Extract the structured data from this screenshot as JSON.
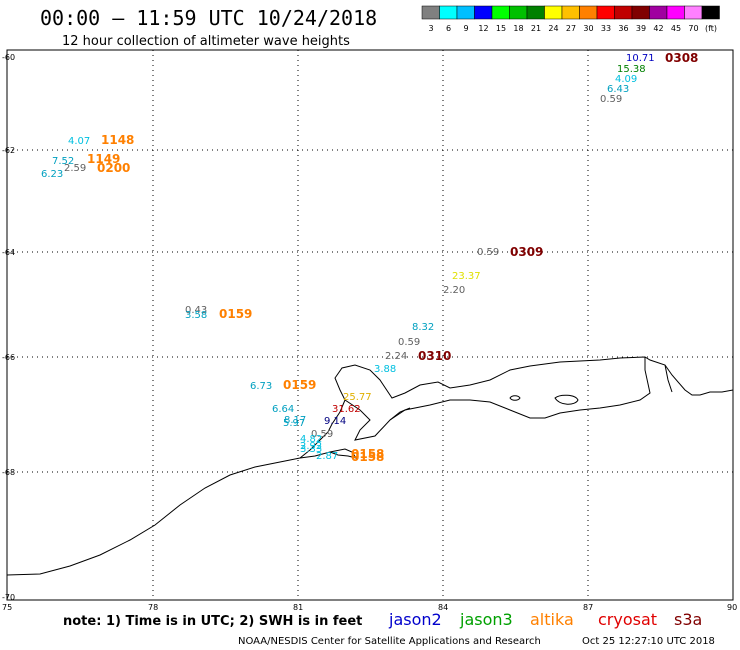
{
  "header": {
    "title": "00:00 – 11:59 UTC 10/24/2018",
    "subtitle": "12 hour collection of altimeter wave heights"
  },
  "color_scale": {
    "colors": [
      "#808080",
      "#00ffff",
      "#00bfff",
      "#0000ff",
      "#00ff00",
      "#00c000",
      "#008000",
      "#ffff00",
      "#ffc000",
      "#ff8000",
      "#ff0000",
      "#c00000",
      "#800000",
      "#a000a0",
      "#ff00ff",
      "#ff80ff",
      "#000000"
    ],
    "labels": [
      "3",
      "6",
      "9",
      "12",
      "15",
      "18",
      "21",
      "24",
      "27",
      "30",
      "33",
      "36",
      "39",
      "42",
      "45",
      "70",
      "(ft)"
    ]
  },
  "axes": {
    "x_ticks": [
      "75",
      "78",
      "81",
      "84",
      "87",
      "90"
    ],
    "y_ticks": [
      "-60",
      "-62",
      "-64",
      "-66",
      "-68",
      "-70"
    ]
  },
  "observations": [
    {
      "text": "10.71",
      "color": "#0000c0"
    },
    {
      "text": "0308",
      "color": "#800000",
      "time": true
    },
    {
      "text": "15.38",
      "color": "#008000"
    },
    {
      "text": "4.09",
      "color": "#00c0e0"
    },
    {
      "text": "6.43",
      "color": "#00a0c0"
    },
    {
      "text": "0.59",
      "color": "#606060"
    },
    {
      "text": "4.07",
      "color": "#00c0e0"
    },
    {
      "text": "1148",
      "color": "#ff8000",
      "time": true
    },
    {
      "text": "7.52",
      "color": "#00a0c0"
    },
    {
      "text": "1149",
      "color": "#ff8000",
      "time": true
    },
    {
      "text": "2.59",
      "color": "#606060"
    },
    {
      "text": "6.23",
      "color": "#00a0c0"
    },
    {
      "text": "0200",
      "color": "#ff8000",
      "time": true
    },
    {
      "text": "0.59",
      "color": "#606060"
    },
    {
      "text": "0309",
      "color": "#800000",
      "time": true
    },
    {
      "text": "23.37",
      "color": "#e0e000"
    },
    {
      "text": "2.20",
      "color": "#606060"
    },
    {
      "text": "0.43",
      "color": "#606060"
    },
    {
      "text": "3.58",
      "color": "#00a0c0"
    },
    {
      "text": "0159",
      "color": "#ff8000",
      "time": true
    },
    {
      "text": "8.32",
      "color": "#00a0c0"
    },
    {
      "text": "0.59",
      "color": "#606060"
    },
    {
      "text": "2.24",
      "color": "#606060"
    },
    {
      "text": "0310",
      "color": "#800000",
      "time": true
    },
    {
      "text": "3.88",
      "color": "#00c0e0"
    },
    {
      "text": "6.73",
      "color": "#00a0c0"
    },
    {
      "text": "0159",
      "color": "#ff8000",
      "time": true
    },
    {
      "text": "25.77",
      "color": "#e0b000"
    },
    {
      "text": "6.64",
      "color": "#00a0c0"
    },
    {
      "text": "31.62",
      "color": "#c00000"
    },
    {
      "text": "8.17",
      "color": "#00a0c0"
    },
    {
      "text": "5.97",
      "color": "#00a0c0"
    },
    {
      "text": "9.14",
      "color": "#000080"
    },
    {
      "text": "0.59",
      "color": "#606060"
    },
    {
      "text": "4.82",
      "color": "#00c0e0"
    },
    {
      "text": "2.92",
      "color": "#00c0e0"
    },
    {
      "text": "0158",
      "color": "#ff8000",
      "time": true
    },
    {
      "text": "3.33",
      "color": "#00c0e0"
    },
    {
      "text": "2.87",
      "color": "#00c0e0"
    },
    {
      "text": "0158",
      "color": "#ff8000",
      "time": true
    }
  ],
  "footer": {
    "note": "note:  1) Time is in UTC;  2) SWH is in feet",
    "satellites": [
      {
        "name": "jason2",
        "color": "#0000cc"
      },
      {
        "name": "jason3",
        "color": "#00a000"
      },
      {
        "name": "altika",
        "color": "#ff8000"
      },
      {
        "name": "cryosat",
        "color": "#e00000"
      },
      {
        "name": "s3a",
        "color": "#800000"
      }
    ],
    "credit": "NOAA/NESDIS Center for Satellite Applications and Research",
    "timestamp": "Oct 25 12:27:10 UTC 2018"
  }
}
